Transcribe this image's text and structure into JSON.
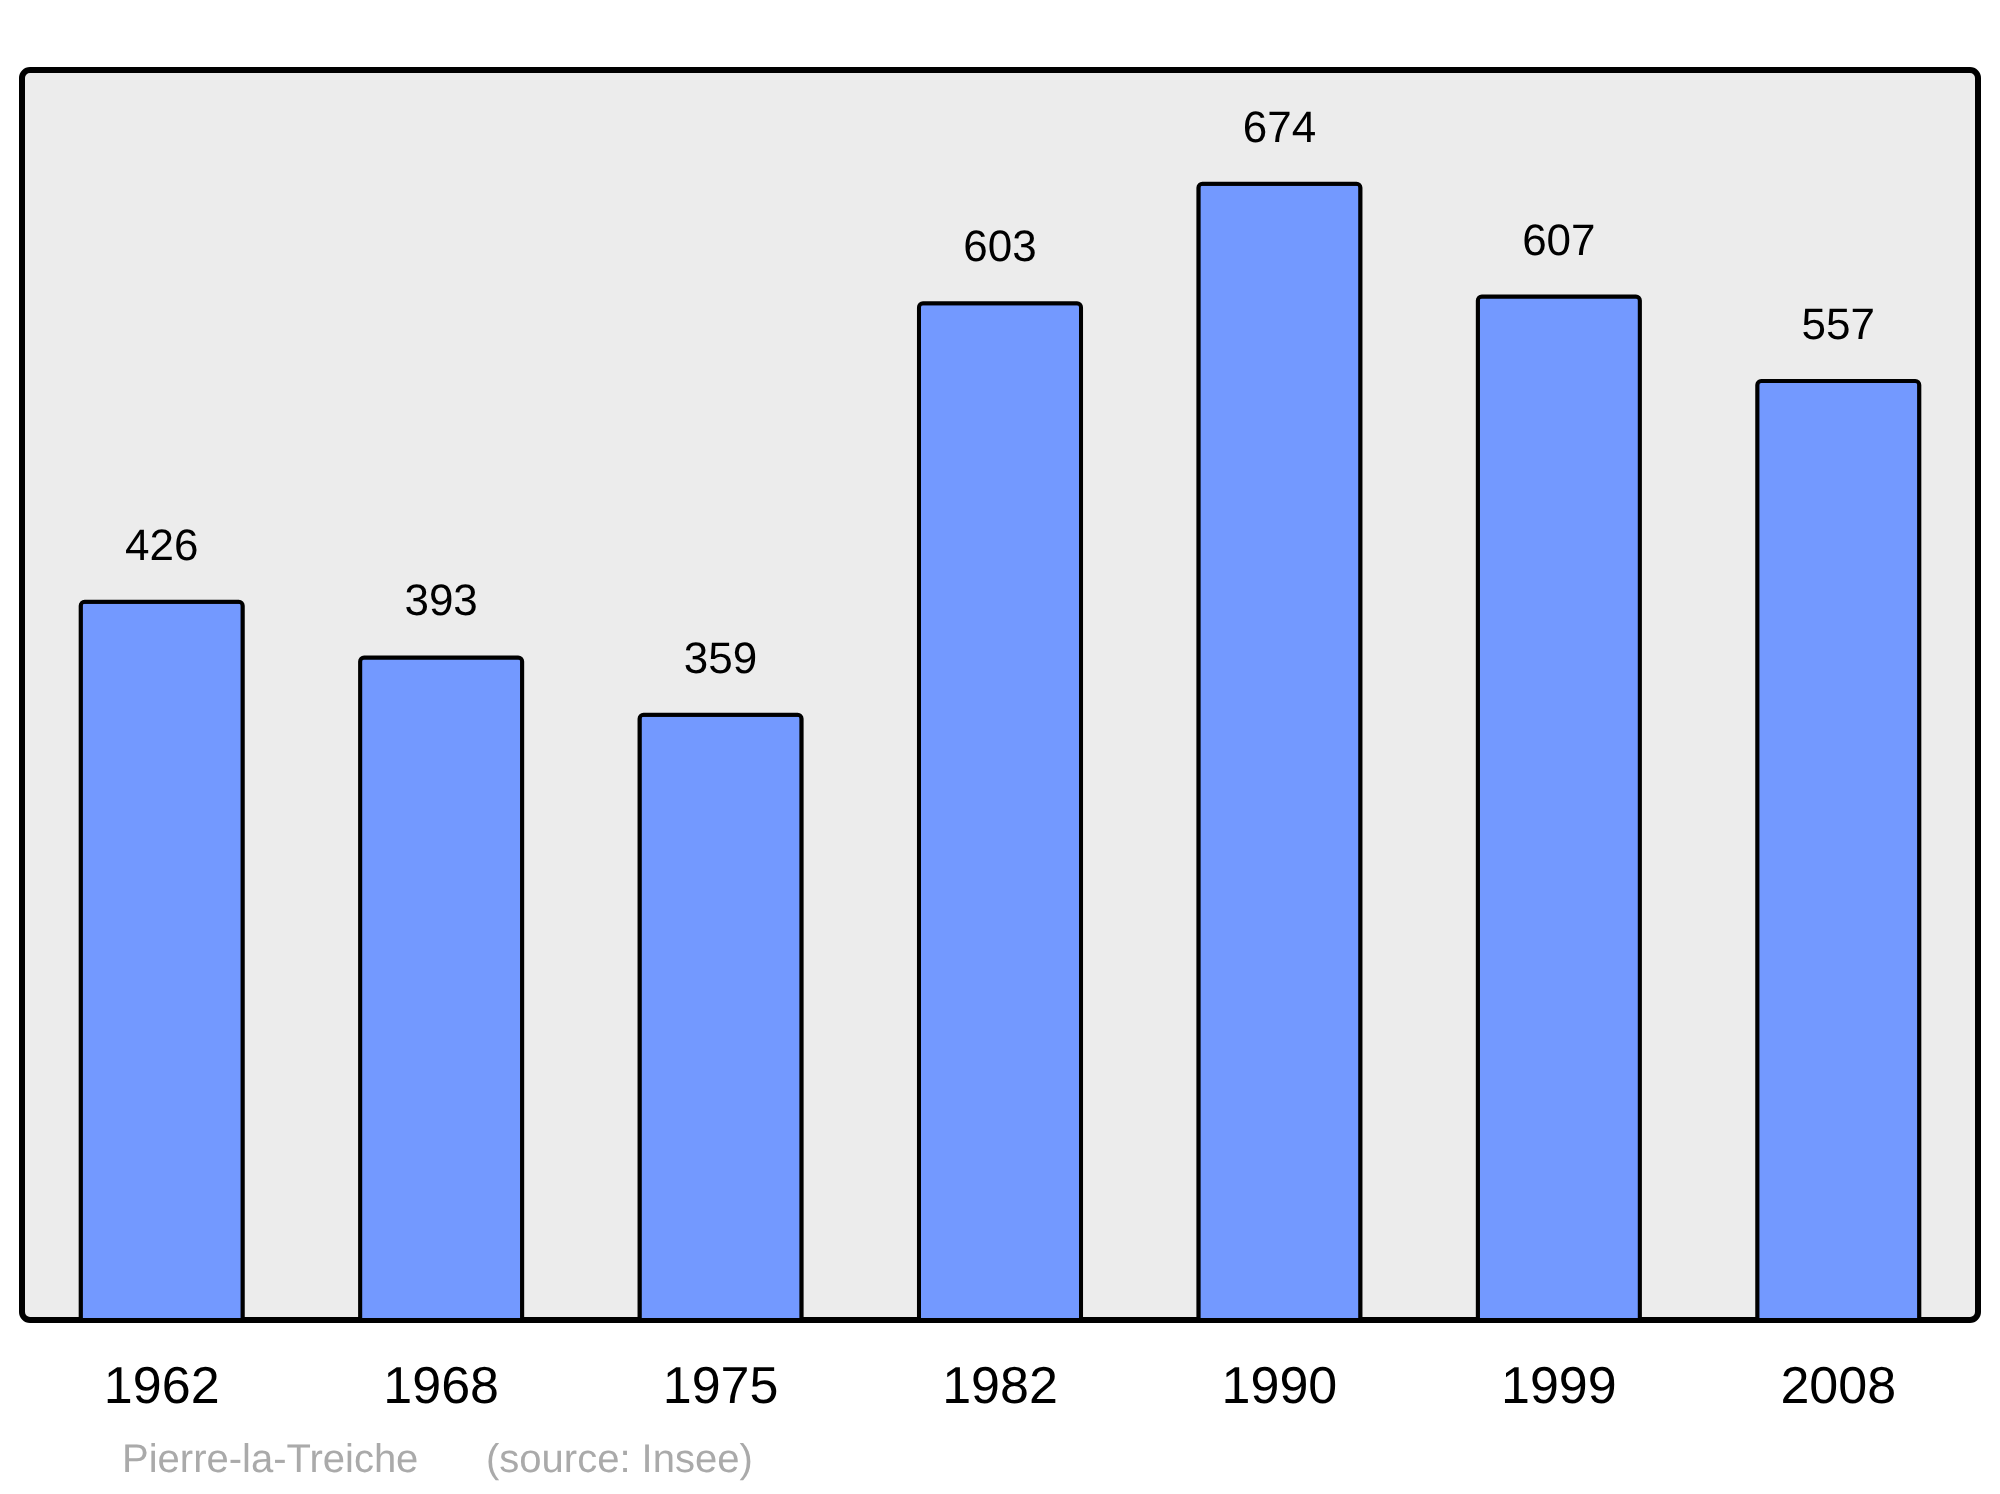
{
  "chart_data": {
    "type": "bar",
    "categories": [
      "1962",
      "1968",
      "1975",
      "1982",
      "1990",
      "1999",
      "2008"
    ],
    "values": [
      426,
      393,
      359,
      603,
      674,
      607,
      557
    ],
    "color": "#7399ff",
    "data_labels": true,
    "annotations": [
      "Pierre-la-Treiche",
      "(source: Insee)"
    ]
  }
}
